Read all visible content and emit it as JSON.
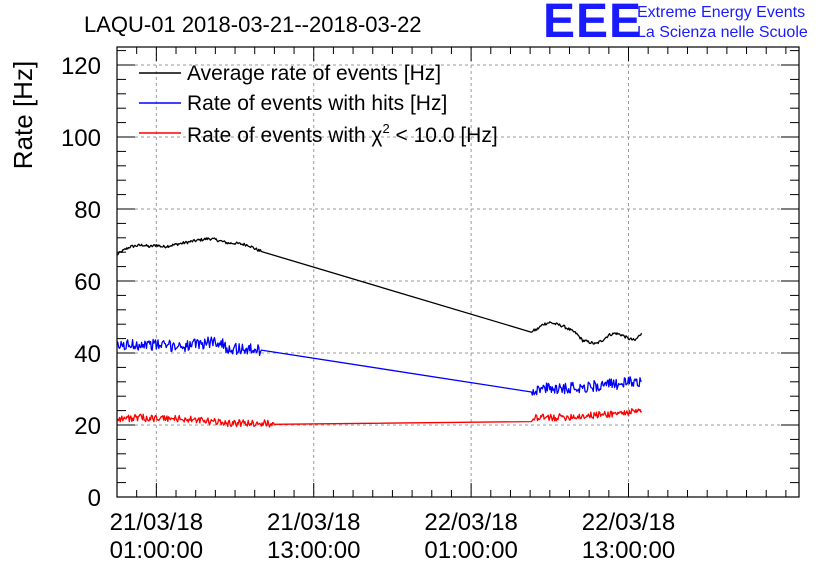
{
  "chart_data": {
    "type": "line",
    "title": "LAQU-01 2018-03-21--2018-03-22",
    "ylabel": "Rate [Hz]",
    "xlabel": "",
    "ylim": [
      0,
      125
    ],
    "yticks": [
      0,
      20,
      40,
      60,
      80,
      100,
      120
    ],
    "x_unit": "hours since 2018-03-20 22:00",
    "xlim": [
      0,
      52
    ],
    "xticks": [
      {
        "x": 3,
        "line1": "21/03/18",
        "line2": "01:00:00"
      },
      {
        "x": 15,
        "line1": "21/03/18",
        "line2": "13:00:00"
      },
      {
        "x": 27,
        "line1": "22/03/18",
        "line2": "01:00:00"
      },
      {
        "x": 39,
        "line1": "22/03/18",
        "line2": "13:00:00"
      }
    ],
    "grid": true,
    "legend_position": "top-left",
    "series": [
      {
        "name": "Average rate of events [Hz]",
        "color": "#000000",
        "noise": 0.4,
        "points": [
          [
            0,
            67.3
          ],
          [
            0.5,
            68.5
          ],
          [
            1,
            69.5
          ],
          [
            1.5,
            69.8
          ],
          [
            2,
            70
          ],
          [
            2.5,
            69.5
          ],
          [
            3,
            70
          ],
          [
            3.5,
            69.5
          ],
          [
            4,
            69.8
          ],
          [
            5,
            70.5
          ],
          [
            6,
            71.2
          ],
          [
            7,
            71.8
          ],
          [
            7.5,
            71.5
          ],
          [
            8,
            71
          ],
          [
            8.5,
            70.5
          ],
          [
            9,
            70.5
          ],
          [
            10,
            70
          ],
          [
            10.5,
            69
          ],
          [
            11,
            68.2
          ],
          [
            31.6,
            46
          ],
          [
            32,
            46.5
          ],
          [
            32.5,
            48
          ],
          [
            33,
            48.5
          ],
          [
            34,
            47.5
          ],
          [
            35,
            45.5
          ],
          [
            35.5,
            43.5
          ],
          [
            36,
            43
          ],
          [
            36.5,
            42.5
          ],
          [
            37,
            43.5
          ],
          [
            37.5,
            45
          ],
          [
            38,
            45.5
          ],
          [
            38.5,
            45
          ],
          [
            39,
            44
          ],
          [
            39.5,
            43.5
          ],
          [
            40,
            45.5
          ]
        ]
      },
      {
        "name": "Rate of events with hits [Hz]",
        "color": "#0000ff",
        "noise": 1.6,
        "points": [
          [
            0,
            41.8
          ],
          [
            1,
            42.3
          ],
          [
            2,
            42.5
          ],
          [
            3,
            42.3
          ],
          [
            4,
            42
          ],
          [
            5,
            42
          ],
          [
            5.5,
            42
          ],
          [
            7.5,
            43.3
          ],
          [
            8,
            42.5
          ],
          [
            8.5,
            41.3
          ],
          [
            9,
            41.2
          ],
          [
            10,
            41
          ],
          [
            11,
            40.8
          ],
          [
            31.6,
            29.3
          ],
          [
            32,
            29.8
          ],
          [
            33,
            30.2
          ],
          [
            34,
            30.3
          ],
          [
            35,
            30.5
          ],
          [
            36,
            30.6
          ],
          [
            37,
            31
          ],
          [
            38,
            31.4
          ],
          [
            39,
            31.8
          ],
          [
            40,
            32.3
          ]
        ]
      },
      {
        "name": "Rate of events with χ² < 10.0 [Hz]",
        "color": "#ff0000",
        "noise": 1.0,
        "points": [
          [
            0,
            21.8
          ],
          [
            1,
            21.9
          ],
          [
            2,
            22
          ],
          [
            3,
            21.8
          ],
          [
            4,
            21.8
          ],
          [
            5,
            21.7
          ],
          [
            5.5,
            21.5
          ],
          [
            7.5,
            20.8
          ],
          [
            8,
            21
          ],
          [
            8.5,
            20.5
          ],
          [
            9,
            20.5
          ],
          [
            10,
            20.5
          ],
          [
            11,
            20.5
          ],
          [
            12,
            20.2
          ],
          [
            31.6,
            21.8
          ],
          [
            32,
            21.9
          ],
          [
            34,
            22.2
          ],
          [
            36,
            22.6
          ],
          [
            38,
            23.2
          ],
          [
            40,
            23.8
          ]
        ]
      }
    ]
  },
  "legend": {
    "avg_label": "Average rate of events [Hz]",
    "hits_label": "Rate of events with hits [Hz]",
    "chi_prefix": "Rate of events with χ",
    "chi_sup": "2",
    "chi_suffix": " < 10.0 [Hz]"
  },
  "header": {
    "logo_text": "EEE",
    "org_line1": "Extreme Energy Events",
    "org_line2": "La Scienza nelle Scuole",
    "brand_color": "#1a1aff"
  }
}
